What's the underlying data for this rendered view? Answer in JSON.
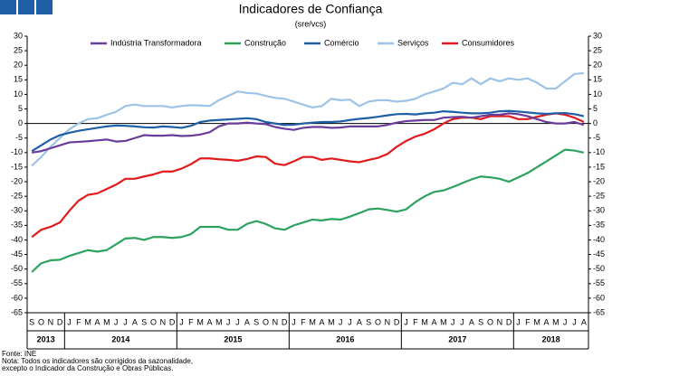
{
  "chart_data": {
    "type": "line",
    "title": "Indicadores de Confiança",
    "subtitle": "(sre/vcs)",
    "categories": [
      "S",
      "O",
      "N",
      "D",
      "J",
      "F",
      "M",
      "A",
      "M",
      "J",
      "J",
      "A",
      "S",
      "O",
      "N",
      "D",
      "J",
      "F",
      "M",
      "A",
      "M",
      "J",
      "J",
      "A",
      "S",
      "O",
      "N",
      "D",
      "J",
      "F",
      "M",
      "A",
      "M",
      "J",
      "J",
      "A",
      "S",
      "O",
      "N",
      "D",
      "J",
      "F",
      "M",
      "A",
      "M",
      "J",
      "J",
      "A",
      "S",
      "O",
      "N",
      "D",
      "J",
      "F",
      "M",
      "A",
      "M",
      "J",
      "J",
      "A"
    ],
    "year_labels": [
      "2013",
      "2014",
      "2015",
      "2016",
      "2017",
      "2018"
    ],
    "ylim": [
      -65,
      30
    ],
    "yticks": [
      -65,
      -60,
      -55,
      -50,
      -45,
      -40,
      -35,
      -30,
      -25,
      -20,
      -15,
      -10,
      -5,
      0,
      5,
      10,
      15,
      20,
      25,
      30
    ],
    "y2lim": [
      -65,
      30
    ],
    "y2ticks": [
      -65,
      -60,
      -55,
      -50,
      -45,
      -40,
      -35,
      -30,
      -25,
      -20,
      -15,
      -10,
      -5,
      0,
      5,
      10,
      15,
      20,
      25,
      30
    ],
    "grid": false,
    "series": [
      {
        "name": "Indústria Transformadora",
        "color": "#6a3d9a",
        "values": [
          -10,
          -9.5,
          -8.5,
          -7.5,
          -6.5,
          -6.3,
          -6.1,
          -5.8,
          -5.5,
          -6.2,
          -6,
          -5,
          -4,
          -4.2,
          -4.2,
          -4,
          -4.3,
          -4.2,
          -3.8,
          -3,
          -1,
          0,
          0,
          0.3,
          0,
          -0.2,
          -1.2,
          -1.8,
          -2.2,
          -1.5,
          -1.2,
          -1.2,
          -1.5,
          -1.4,
          -1,
          -1,
          -1,
          -1,
          -0.5,
          0.3,
          0.8,
          1,
          1.2,
          1.2,
          2,
          2.2,
          2.3,
          2,
          2.5,
          3,
          3,
          3.5,
          3.2,
          2.5,
          1.5,
          0.5,
          0,
          0,
          0.5,
          -0.5
        ]
      },
      {
        "name": "Construção",
        "color": "#2ca25f",
        "values": [
          -51,
          -48,
          -47,
          -46.8,
          -45.5,
          -44.5,
          -43.5,
          -44,
          -43.5,
          -41.5,
          -39.5,
          -39.3,
          -40,
          -39,
          -39,
          -39.3,
          -39,
          -38,
          -35.5,
          -35.5,
          -35.5,
          -36.5,
          -36.5,
          -34.5,
          -33.5,
          -34.5,
          -36,
          -36.5,
          -35,
          -34,
          -33,
          -33.3,
          -32.8,
          -33,
          -32,
          -30.8,
          -29.5,
          -29.2,
          -29.7,
          -30.3,
          -29.5,
          -27,
          -25,
          -23.5,
          -23,
          -21.8,
          -20.5,
          -19.2,
          -18.2,
          -18.5,
          -19,
          -20,
          -18.5,
          -17,
          -15,
          -13,
          -11,
          -9,
          -9.3,
          -10
        ]
      },
      {
        "name": "Comércio",
        "color": "#1f5fa6",
        "values": [
          -9.5,
          -7.5,
          -5.5,
          -4,
          -3.2,
          -2.5,
          -2,
          -1.5,
          -1,
          -0.7,
          -0.8,
          -1,
          -1.3,
          -1.4,
          -1,
          -1.2,
          -1.5,
          -0.8,
          0.5,
          1,
          1.2,
          1.4,
          1.6,
          1.8,
          1.5,
          0.5,
          0,
          -0.5,
          -0.4,
          0,
          0.3,
          0.5,
          0.5,
          0.7,
          1.2,
          1.6,
          1.9,
          2.3,
          2.8,
          3.2,
          3.3,
          3.1,
          3.5,
          3.7,
          4.2,
          4,
          3.7,
          3.5,
          3.5,
          3.7,
          4.2,
          4.3,
          4.1,
          3.8,
          3.5,
          3.3,
          3.5,
          3.6,
          3.2,
          2.5
        ]
      },
      {
        "name": "Serviços",
        "color": "#9dc3e6",
        "values": [
          -14.5,
          -11.5,
          -8,
          -5,
          -2,
          0,
          1.5,
          1.8,
          3,
          4,
          6,
          6.5,
          6,
          6,
          6,
          5.5,
          6,
          6.3,
          6.2,
          6,
          8,
          9.5,
          11,
          10.5,
          10.3,
          9.5,
          8.8,
          8.5,
          7.5,
          6.5,
          5.5,
          6,
          8.5,
          8,
          8.2,
          6,
          7.5,
          8,
          8,
          7.5,
          7.8,
          8.5,
          10,
          11,
          12,
          14,
          13.5,
          15.5,
          13.5,
          15.5,
          14.5,
          15.5,
          15,
          15.5,
          14,
          12,
          12,
          14.5,
          17,
          17.3
        ]
      },
      {
        "name": "Consumidores",
        "color": "#e31a1c",
        "values": [
          -39,
          -36.5,
          -35.5,
          -34,
          -30,
          -26.5,
          -24.5,
          -24,
          -22.5,
          -21,
          -19,
          -19,
          -18.2,
          -17.5,
          -16.5,
          -16.5,
          -15.5,
          -14,
          -12,
          -12,
          -12.3,
          -12.5,
          -12.8,
          -12.2,
          -11.3,
          -11.5,
          -13.8,
          -14.3,
          -13,
          -11.5,
          -11.5,
          -12.5,
          -12,
          -12.5,
          -13,
          -13.3,
          -12.5,
          -11.8,
          -10.5,
          -8,
          -6,
          -4.5,
          -3.5,
          -2,
          0,
          1.5,
          2,
          2,
          1.5,
          2.5,
          2.5,
          2.5,
          1.5,
          1.5,
          2.3,
          3,
          3.5,
          3,
          2,
          0.5
        ]
      }
    ],
    "notes": [
      "Fonte: INE",
      "Nota: Todos os indicadores são corrigidos da sazonalidade,",
      "excepto o Indicador da Construção e Obras Públicas."
    ]
  }
}
